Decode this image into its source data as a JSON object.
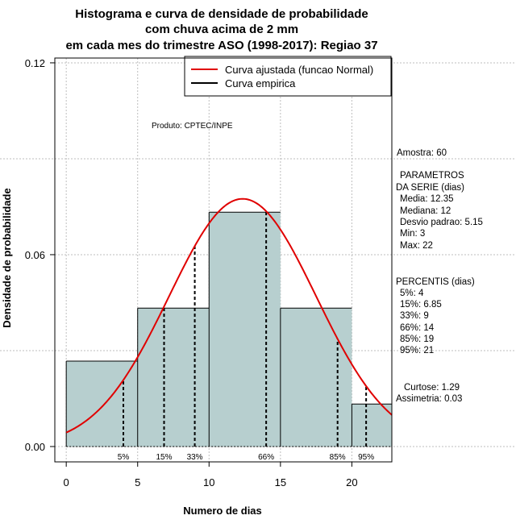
{
  "chart_data": {
    "type": "bar",
    "title_lines": [
      "Histograma e curva de densidade de probabilidade",
      "com chuva acima de 2 mm",
      "em cada mes do trimestre ASO (1998-2017): Regiao 37"
    ],
    "xlabel": "Numero de dias",
    "ylabel": "Densidade de probabilidade",
    "xlim": [
      -0.8,
      22.8
    ],
    "ylim": [
      -0.0048,
      0.1215
    ],
    "x_ticks": [
      0,
      5,
      10,
      15,
      20
    ],
    "y_ticks": [
      0.0,
      0.06,
      0.12
    ],
    "y_tick_labels": [
      "0.00",
      "0.06",
      "0.12"
    ],
    "bins": [
      {
        "from": 0,
        "to": 5,
        "density": 0.0267
      },
      {
        "from": 5,
        "to": 10,
        "density": 0.0433
      },
      {
        "from": 10,
        "to": 15,
        "density": 0.0733
      },
      {
        "from": 15,
        "to": 20,
        "density": 0.0433
      },
      {
        "from": 20,
        "to": 23,
        "density": 0.0133
      }
    ],
    "normal_fit": {
      "mean": 12.35,
      "sd": 5.15
    },
    "percentile_marks": [
      {
        "label": "5%",
        "x": 4
      },
      {
        "label": "15%",
        "x": 6.85
      },
      {
        "label": "33%",
        "x": 9
      },
      {
        "label": "66%",
        "x": 14
      },
      {
        "label": "85%",
        "x": 19
      },
      {
        "label": "95%",
        "x": 21
      }
    ],
    "legend": [
      {
        "label": "Curva ajustada (funcao Normal)",
        "color": "#e00000"
      },
      {
        "label": "Curva empirica",
        "color": "#000000"
      }
    ],
    "credit": "Produto: CPTEC/INPE",
    "colors": {
      "bar_fill": "#b7cfcf",
      "curve": "#e00000",
      "grid": "#bebebe"
    }
  },
  "stats": {
    "sample": "Amostra: 60",
    "params_heading": [
      "PARAMETROS",
      "DA SERIE (dias)"
    ],
    "params": [
      "Media: 12.35",
      "Mediana: 12",
      "Desvio padrao: 5.15",
      "Min: 3",
      "Max: 22"
    ],
    "percentiles_heading": "PERCENTIS (dias)",
    "percentiles": [
      "5%: 4",
      "15%: 6.85",
      "33%: 9",
      "66%: 14",
      "85%: 19",
      "95%: 21"
    ],
    "kurtosis": "Curtose: 1.29",
    "skewness": "Assimetria: 0.03"
  }
}
